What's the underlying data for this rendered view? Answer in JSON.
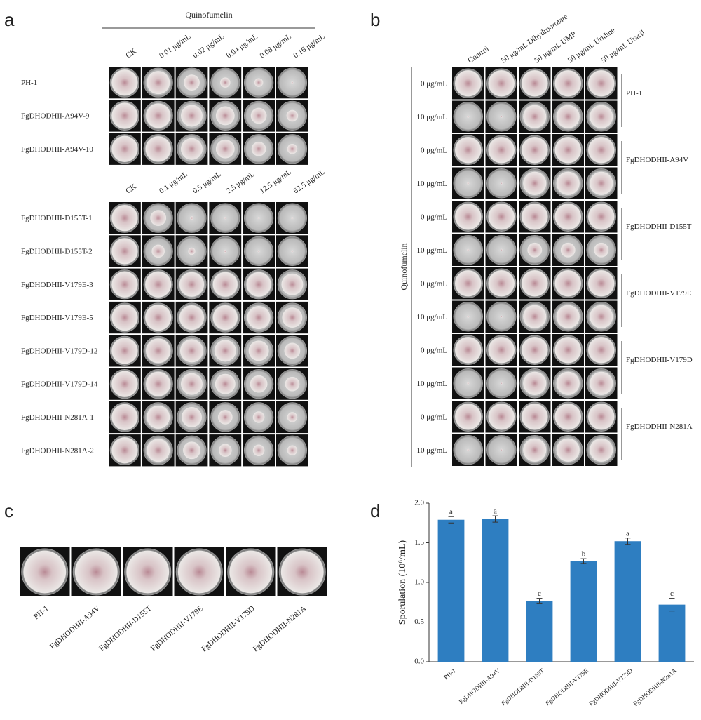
{
  "panels": {
    "a": {
      "label": "a",
      "treatment": "Quinofumelin",
      "group1": {
        "concentrations": [
          "CK",
          "0.01 μg/mL",
          "0.02 μg/mL",
          "0.04 μg/mL",
          "0.08 μg/mL",
          "0.16 μg/mL"
        ],
        "strains": [
          "PH-1",
          "FgDHODHII-A94V-9",
          "FgDHODHII-A94V-10"
        ]
      },
      "group2": {
        "concentrations": [
          "CK",
          "0.1 μg/mL",
          "0.5 μg/mL",
          "2.5 μg/mL",
          "12.5 μg/mL",
          "62.5 μg/mL"
        ],
        "strains": [
          "FgDHODHII-D155T-1",
          "FgDHODHII-D155T-2",
          "FgDHODHII-V179E-3",
          "FgDHODHII-V179E-5",
          "FgDHODHII-V179D-12",
          "FgDHODHII-V179D-14",
          "FgDHODHII-N281A-1",
          "FgDHODHII-N281A-2"
        ]
      }
    },
    "b": {
      "label": "b",
      "axis_label": "Quinofumelin",
      "columns": [
        "Control",
        "50 μg/mL Dihydroorotate",
        "50 μg/mL UMP",
        "50 μg/mL Uridine",
        "50 μg/mL Uracil"
      ],
      "doses": [
        "0 μg/mL",
        "10 μg/mL"
      ],
      "strains": [
        "PH-1",
        "FgDHODHII-A94V",
        "FgDHODHII-D155T",
        "FgDHODHII-V179E",
        "FgDHODHII-V179D",
        "FgDHODHII-N281A"
      ]
    },
    "c": {
      "label": "c",
      "strains": [
        "PH-1",
        "FgDHODHII-A94V",
        "FgDHODHII-D155T",
        "FgDHODHII-V179E",
        "FgDHODHII-V179D",
        "FgDHODHII-N281A"
      ]
    }
  },
  "chart_data": {
    "type": "bar",
    "panel_label": "d",
    "y_label": "Sporulation (10⁶/mL)",
    "categories": [
      "PH-1",
      "FgDHODHII-A94V",
      "FgDHODHII-D155T",
      "FgDHODHII-V179E",
      "FgDHODHII-V179D",
      "FgDHODHII-N281A"
    ],
    "series": [
      {
        "color": "#2e7ec1",
        "values": [
          1.79,
          1.8,
          0.77,
          1.27,
          1.52,
          0.72
        ],
        "errors": [
          0.04,
          0.04,
          0.03,
          0.03,
          0.04,
          0.08
        ],
        "significance": [
          "a",
          "a",
          "c",
          "b",
          "a",
          "c"
        ]
      }
    ],
    "ylim": [
      0,
      2.0
    ],
    "yticks": [
      {
        "value": 0,
        "label": "0.0"
      },
      {
        "value": 0.5,
        "label": "0.5"
      },
      {
        "value": 1.0,
        "label": "1.0"
      },
      {
        "value": 1.5,
        "label": "1.5"
      },
      {
        "value": 2.0,
        "label": "2.0"
      }
    ]
  }
}
